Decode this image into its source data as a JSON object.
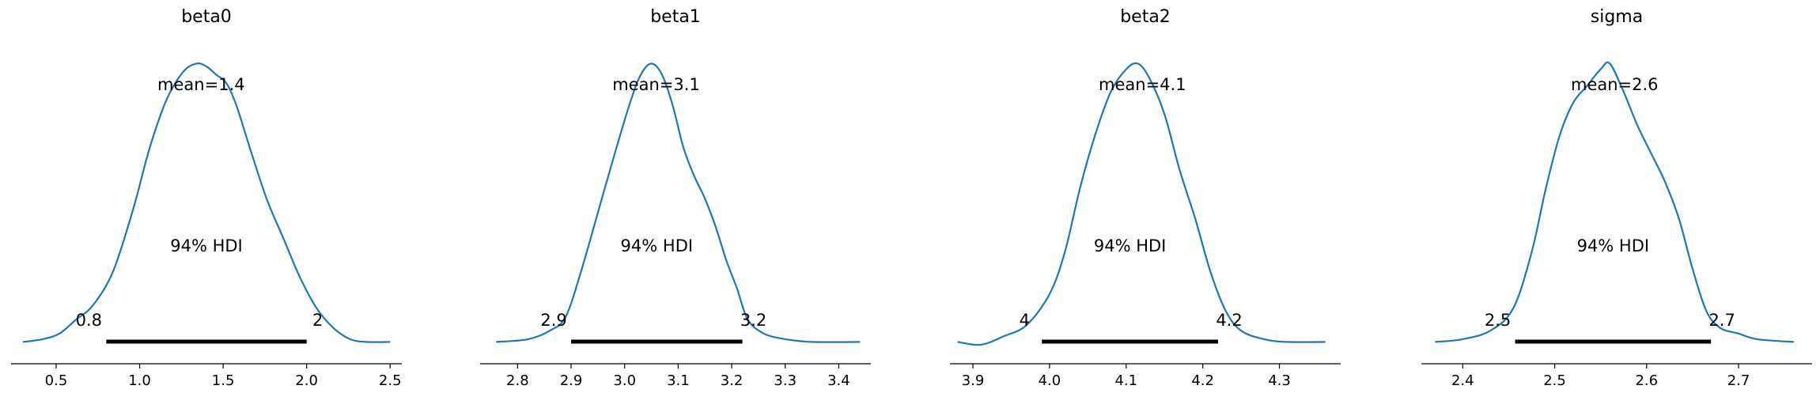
{
  "chart_data": [
    {
      "type": "area",
      "title": "beta0",
      "point_estimate_label": "mean=1.4",
      "hdi_label": "94% HDI",
      "hdi": [
        0.8,
        2.0
      ],
      "hdi_labels": [
        "0.8",
        "2"
      ],
      "xlim": [
        0.23,
        2.57
      ],
      "xticks": [
        0.5,
        1.0,
        1.5,
        2.0,
        2.5
      ],
      "xtick_labels": [
        "0.5",
        "1.0",
        "1.5",
        "2.0",
        "2.5"
      ],
      "density": {
        "x": [
          0.3,
          0.42,
          0.52,
          0.62,
          0.72,
          0.84,
          0.96,
          1.06,
          1.16,
          1.26,
          1.34,
          1.4,
          1.46,
          1.52,
          1.58,
          1.66,
          1.76,
          1.86,
          1.96,
          2.06,
          2.16,
          2.26,
          2.36,
          2.5
        ],
        "y": [
          0.01,
          0.02,
          0.04,
          0.09,
          0.14,
          0.26,
          0.48,
          0.7,
          0.87,
          0.97,
          1.0,
          0.99,
          0.96,
          0.93,
          0.85,
          0.7,
          0.52,
          0.38,
          0.24,
          0.13,
          0.06,
          0.02,
          0.01,
          0.01
        ]
      },
      "ylim": [
        0,
        1.08
      ]
    },
    {
      "type": "area",
      "title": "beta1",
      "point_estimate_label": "mean=3.1",
      "hdi_label": "94% HDI",
      "hdi": [
        2.9,
        3.22
      ],
      "hdi_labels": [
        "2.9",
        "3.2"
      ],
      "xlim": [
        2.73,
        3.46
      ],
      "xticks": [
        2.8,
        2.9,
        3.0,
        3.1,
        3.2,
        3.3,
        3.4
      ],
      "xtick_labels": [
        "2.8",
        "2.9",
        "3.0",
        "3.1",
        "3.2",
        "3.3",
        "3.4"
      ],
      "density": {
        "x": [
          2.76,
          2.82,
          2.86,
          2.89,
          2.92,
          2.95,
          2.98,
          3.01,
          3.03,
          3.05,
          3.07,
          3.09,
          3.11,
          3.13,
          3.15,
          3.17,
          3.19,
          3.21,
          3.23,
          3.26,
          3.3,
          3.35,
          3.44
        ],
        "y": [
          0.01,
          0.02,
          0.05,
          0.1,
          0.27,
          0.47,
          0.67,
          0.86,
          0.96,
          1.0,
          0.96,
          0.85,
          0.7,
          0.6,
          0.52,
          0.42,
          0.3,
          0.2,
          0.09,
          0.04,
          0.02,
          0.01,
          0.01
        ]
      },
      "ylim": [
        0,
        1.08
      ]
    },
    {
      "type": "area",
      "title": "beta2",
      "point_estimate_label": "mean=4.1",
      "hdi_label": "94% HDI",
      "hdi": [
        3.99,
        4.22
      ],
      "hdi_labels": [
        "4",
        "4.2"
      ],
      "xlim": [
        3.87,
        4.38
      ],
      "xticks": [
        3.9,
        4.0,
        4.1,
        4.2,
        4.3
      ],
      "xtick_labels": [
        "3.9",
        "4.0",
        "4.1",
        "4.2",
        "4.3"
      ],
      "density": {
        "x": [
          3.88,
          3.91,
          3.94,
          3.97,
          4.0,
          4.02,
          4.04,
          4.06,
          4.08,
          4.1,
          4.115,
          4.13,
          4.15,
          4.17,
          4.19,
          4.21,
          4.23,
          4.25,
          4.28,
          4.31,
          4.36
        ],
        "y": [
          0.01,
          0.0,
          0.03,
          0.07,
          0.18,
          0.33,
          0.56,
          0.75,
          0.9,
          0.98,
          1.0,
          0.95,
          0.82,
          0.62,
          0.45,
          0.26,
          0.12,
          0.05,
          0.02,
          0.01,
          0.01
        ]
      },
      "ylim": [
        0,
        1.08
      ]
    },
    {
      "type": "area",
      "title": "sigma",
      "point_estimate_label": "mean=2.6",
      "hdi_label": "94% HDI",
      "hdi": [
        2.457,
        2.67
      ],
      "hdi_labels": [
        "2.5",
        "2.7"
      ],
      "xlim": [
        2.355,
        2.78
      ],
      "xticks": [
        2.4,
        2.5,
        2.6,
        2.7
      ],
      "xtick_labels": [
        "2.4",
        "2.5",
        "2.6",
        "2.7"
      ],
      "density": {
        "x": [
          2.37,
          2.4,
          2.43,
          2.455,
          2.475,
          2.49,
          2.505,
          2.52,
          2.535,
          2.55,
          2.56,
          2.575,
          2.59,
          2.605,
          2.62,
          2.635,
          2.65,
          2.665,
          2.68,
          2.7,
          2.72,
          2.76
        ],
        "y": [
          0.01,
          0.02,
          0.05,
          0.13,
          0.33,
          0.55,
          0.74,
          0.86,
          0.92,
          0.98,
          1.0,
          0.9,
          0.78,
          0.68,
          0.58,
          0.45,
          0.27,
          0.12,
          0.06,
          0.04,
          0.02,
          0.01
        ]
      },
      "ylim": [
        0,
        1.08
      ]
    }
  ],
  "style": {
    "line_color": "#1f77b4",
    "hdi_bar_color": "#000000",
    "axis_color": "#000000"
  }
}
